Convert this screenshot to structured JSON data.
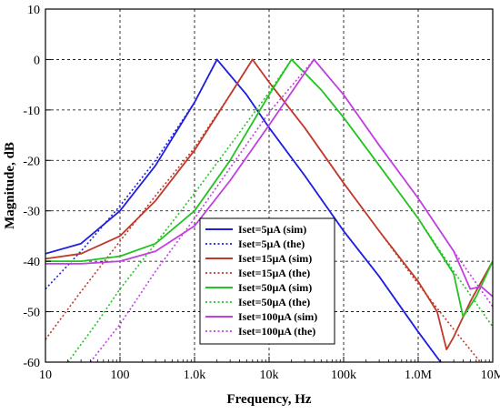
{
  "chart_data": {
    "type": "line",
    "xlabel": "Frequency, Hz",
    "ylabel": "Magnitude, dB",
    "xscale": "log",
    "xlim": [
      10,
      10000000
    ],
    "ylim": [
      -60,
      10
    ],
    "xticks": [
      {
        "value": 10,
        "label": "10"
      },
      {
        "value": 100,
        "label": "100"
      },
      {
        "value": 1000,
        "label": "1.0k"
      },
      {
        "value": 10000,
        "label": "10k"
      },
      {
        "value": 100000,
        "label": "100k"
      },
      {
        "value": 1000000,
        "label": "1.0M"
      },
      {
        "value": 10000000,
        "label": "10M"
      }
    ],
    "yticks": [
      10,
      0,
      -10,
      -20,
      -30,
      -40,
      -50,
      -60
    ],
    "grid": true,
    "legend_position": "center-bottom",
    "series": [
      {
        "name": "Iset=5μA (sim)",
        "color": "#1f1fe0",
        "dash": "solid",
        "x": [
          10,
          30,
          100,
          300,
          1000,
          2000,
          5000,
          10000,
          30000,
          100000,
          300000,
          1000000,
          2000000
        ],
        "y": [
          -38.5,
          -36.5,
          -30,
          -21,
          -8.5,
          0,
          -7,
          -13.5,
          -23,
          -34,
          -43,
          -54,
          -60
        ]
      },
      {
        "name": "Iset=5μA (the)",
        "color": "#1f1fe0",
        "dash": "dotted",
        "x": [
          10,
          30,
          100,
          300,
          1000,
          2000,
          5000,
          10000,
          30000,
          100000,
          300000,
          1000000,
          2000000
        ],
        "y": [
          -45.5,
          -38,
          -29,
          -20,
          -8.5,
          0,
          -7,
          -13.5,
          -23,
          -34,
          -43,
          -54,
          -60
        ]
      },
      {
        "name": "Iset=15μA (sim)",
        "color": "#c0392b",
        "dash": "solid",
        "x": [
          10,
          30,
          100,
          300,
          1000,
          3000,
          6000,
          10000,
          30000,
          100000,
          300000,
          1000000,
          1800000,
          2400000,
          3000000,
          5000000,
          10000000
        ],
        "y": [
          -39.5,
          -38.5,
          -35,
          -28,
          -18,
          -7,
          0,
          -4.5,
          -13.5,
          -24.5,
          -34,
          -44,
          -50,
          -57.5,
          -55,
          -48,
          -40
        ]
      },
      {
        "name": "Iset=15μA (the)",
        "color": "#c0392b",
        "dash": "dotted",
        "x": [
          10,
          30,
          100,
          300,
          1000,
          3000,
          6000,
          10000,
          30000,
          100000,
          300000,
          1000000,
          3000000,
          10000000
        ],
        "y": [
          -55.5,
          -46,
          -36,
          -27,
          -17.5,
          -7,
          0,
          -4.5,
          -13.5,
          -24.5,
          -34,
          -44.5,
          -53.5,
          -63
        ]
      },
      {
        "name": "Iset=50μA (sim)",
        "color": "#22c322",
        "dash": "solid",
        "x": [
          10,
          30,
          100,
          300,
          1000,
          3000,
          10000,
          20000,
          50000,
          100000,
          300000,
          1000000,
          3000000,
          4000000,
          6000000,
          10000000
        ],
        "y": [
          -40,
          -40,
          -39,
          -36.5,
          -30,
          -20,
          -7,
          0,
          -6,
          -11.5,
          -21,
          -31.5,
          -42.5,
          -51,
          -47,
          -40
        ]
      },
      {
        "name": "Iset=50μA (the)",
        "color": "#22c322",
        "dash": "dotted",
        "x": [
          20,
          50,
          100,
          300,
          1000,
          3000,
          10000,
          20000,
          50000,
          100000,
          300000,
          1000000,
          3000000,
          10000000
        ],
        "y": [
          -60,
          -52,
          -45.5,
          -36.5,
          -26.5,
          -17,
          -6.5,
          0,
          -6,
          -11.5,
          -21,
          -31.5,
          -42,
          -53
        ]
      },
      {
        "name": "Iset=100μA (sim)",
        "color": "#c040e0",
        "dash": "solid",
        "x": [
          10,
          30,
          100,
          300,
          1000,
          3000,
          10000,
          40000,
          100000,
          300000,
          1000000,
          3000000,
          5000000,
          7000000,
          10000000
        ],
        "y": [
          -40.5,
          -40.5,
          -40,
          -38,
          -33,
          -24,
          -13,
          0,
          -7,
          -17,
          -27.5,
          -38,
          -45.5,
          -45,
          -47
        ]
      },
      {
        "name": "Iset=100μA (the)",
        "color": "#c040e0",
        "dash": "dotted",
        "x": [
          40,
          100,
          300,
          1000,
          3000,
          10000,
          40000,
          100000,
          300000,
          1000000,
          3000000,
          10000000
        ],
        "y": [
          -60,
          -52.5,
          -42,
          -31.5,
          -21.5,
          -10.5,
          0,
          -7,
          -17,
          -27.5,
          -38,
          -49
        ]
      }
    ]
  }
}
